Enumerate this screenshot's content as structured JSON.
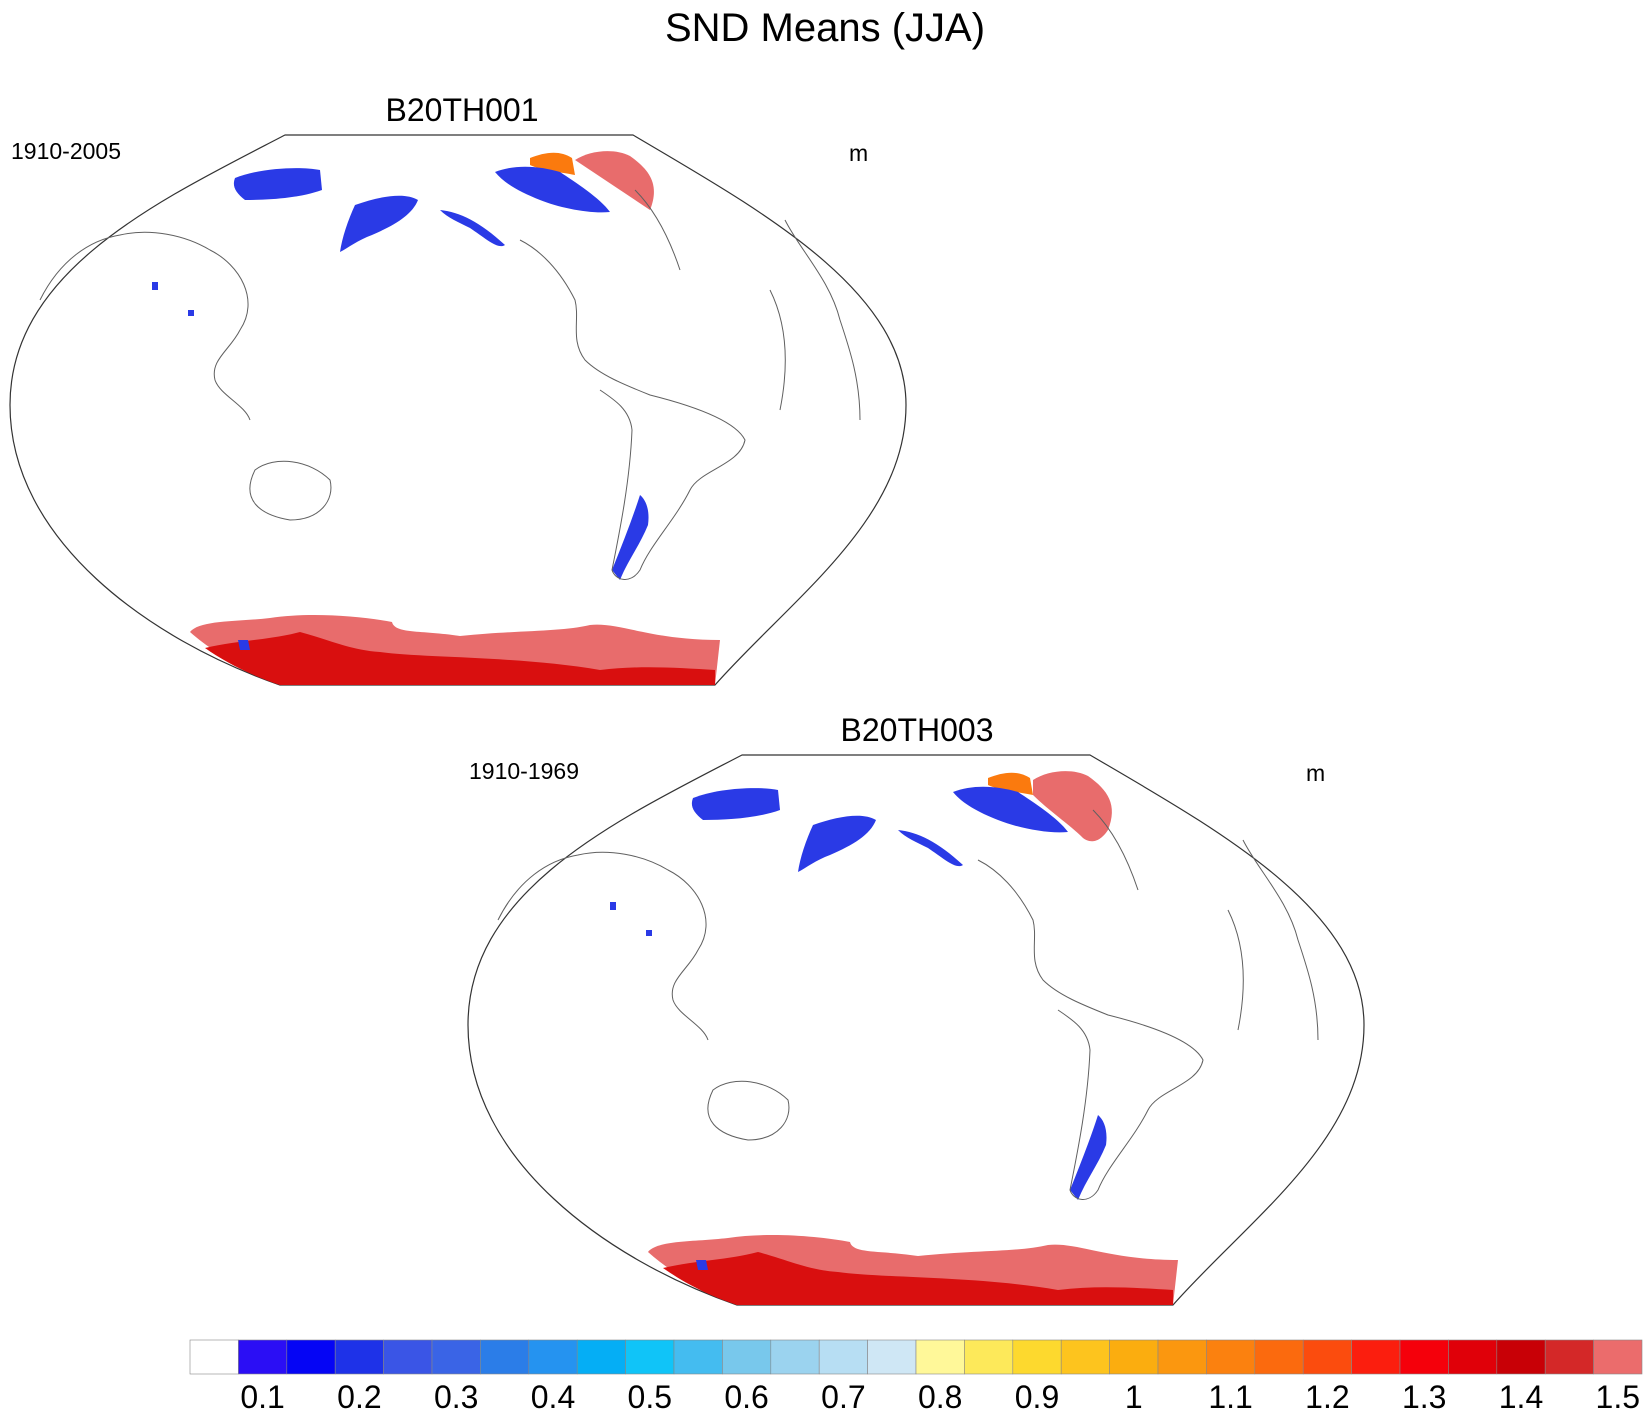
{
  "title": "SND Means (JJA)",
  "panels": [
    {
      "name": "B20TH001",
      "period": "1910-2005",
      "units": "m"
    },
    {
      "name": "B20TH003",
      "period": "1910-1969",
      "units": "m"
    }
  ],
  "colorbar": {
    "labels": [
      "0.1",
      "0.2",
      "0.3",
      "0.4",
      "0.5",
      "0.6",
      "0.7",
      "0.8",
      "0.9",
      "1",
      "1.1",
      "1.2",
      "1.3",
      "1.4",
      "1.5"
    ],
    "colors": [
      "#ffffff",
      "#2b0ef5",
      "#0505f5",
      "#1e32e8",
      "#3a55e6",
      "#3a64e6",
      "#2b7de8",
      "#2593f0",
      "#05aef5",
      "#10c4f8",
      "#44bcf0",
      "#78c8ec",
      "#9bd3ef",
      "#b7def3",
      "#cfe7f5",
      "#fff899",
      "#fde95a",
      "#fdd92e",
      "#fdc41e",
      "#fbad0f",
      "#fb970f",
      "#fb810f",
      "#fb6a0e",
      "#fb4c0e",
      "#fb1e0e",
      "#f5000b",
      "#e00009",
      "#c80006",
      "#d42828",
      "#eb6c6c"
    ]
  },
  "map_colors": {
    "antarctica_main": "#e86c6c",
    "antarctica_deep": "#d90f0f",
    "snow_blue": "#2a3ae6",
    "greenland": "#e86c6c",
    "greenland_edge": "#fb7a0e",
    "coast": "#606060"
  }
}
